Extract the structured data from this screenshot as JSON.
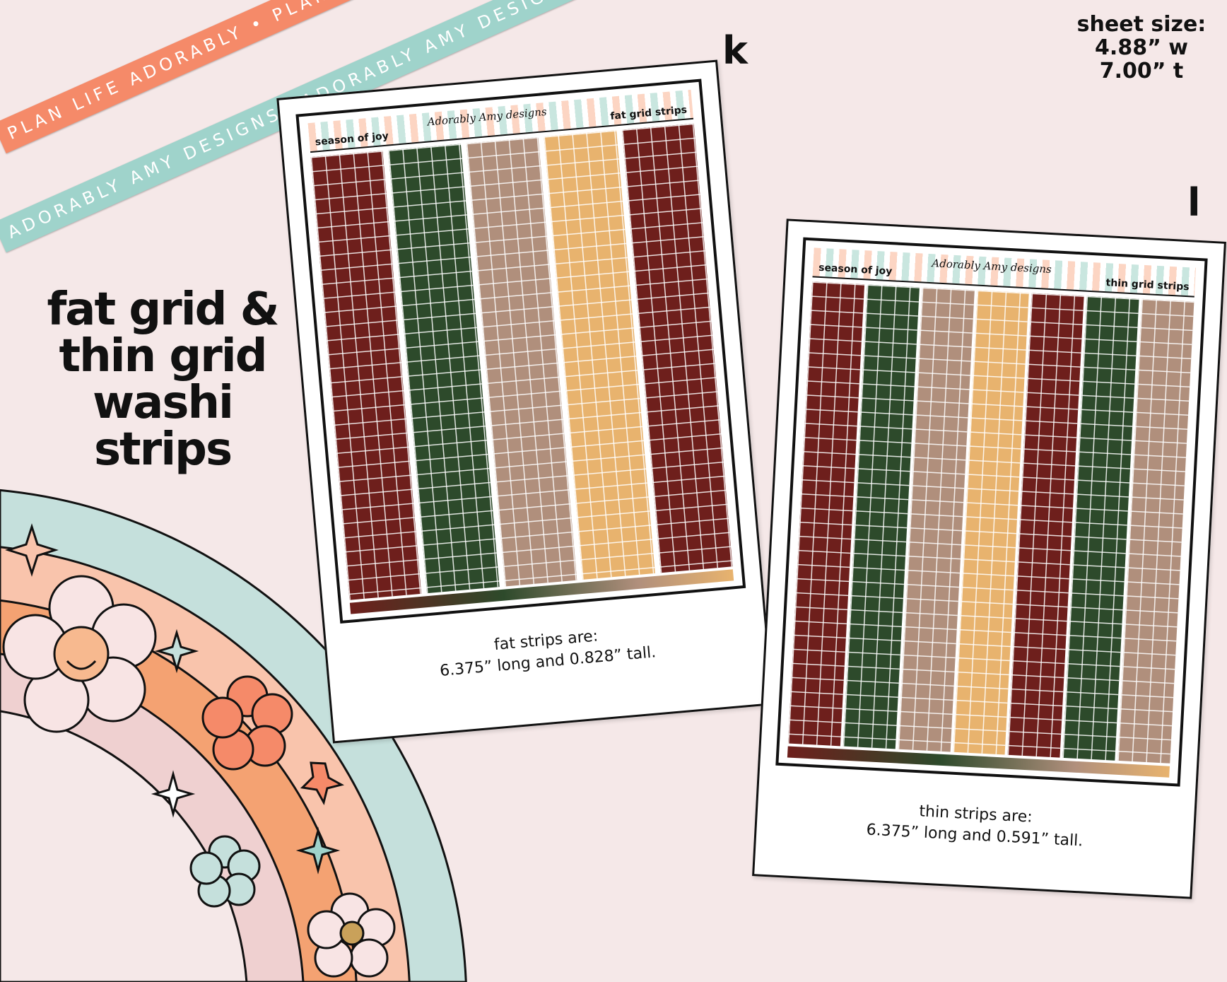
{
  "ribbons": {
    "orange": "PLAN LIFE ADORABLY • PLAN LIFE ADORABLY • PLAN LIFE ADORABLY",
    "teal": "ADORABLY AMY DESIGNS• ADORABLY AMY DESIGNS• ADORABLY AMY DESIGNS"
  },
  "headline": {
    "line1": "fat grid &",
    "line2": "thin grid",
    "line3": "washi strips"
  },
  "sheet_size": {
    "label": "sheet size:",
    "width": "4.88” w",
    "height": "7.00” t"
  },
  "fat_sheet": {
    "letter": "k",
    "title": "season of joy",
    "logo": "Adorably Amy designs",
    "type": "fat grid strips",
    "caption1": "fat strips are:",
    "caption2": "6.375” long and 0.828” tall.",
    "strip_colors": [
      "#6e1f1c",
      "#2d4a2b",
      "#b08f7c",
      "#e8b36e",
      "#6e1f1c"
    ]
  },
  "thin_sheet": {
    "letter": "l",
    "title": "season of joy",
    "logo": "Adorably Amy designs",
    "type": "thin grid strips",
    "caption1": "thin strips are:",
    "caption2": "6.375” long and 0.591” tall.",
    "strip_colors": [
      "#6e1f1c",
      "#2d4a2b",
      "#b08f7c",
      "#e8b36e",
      "#6e1f1c",
      "#2d4a2b",
      "#b08f7c"
    ]
  },
  "colors": {
    "background": "#f5e8e8",
    "rainbow": [
      "#c5e0dc",
      "#f9c4ac",
      "#f4a272",
      "#efd0d0"
    ]
  }
}
